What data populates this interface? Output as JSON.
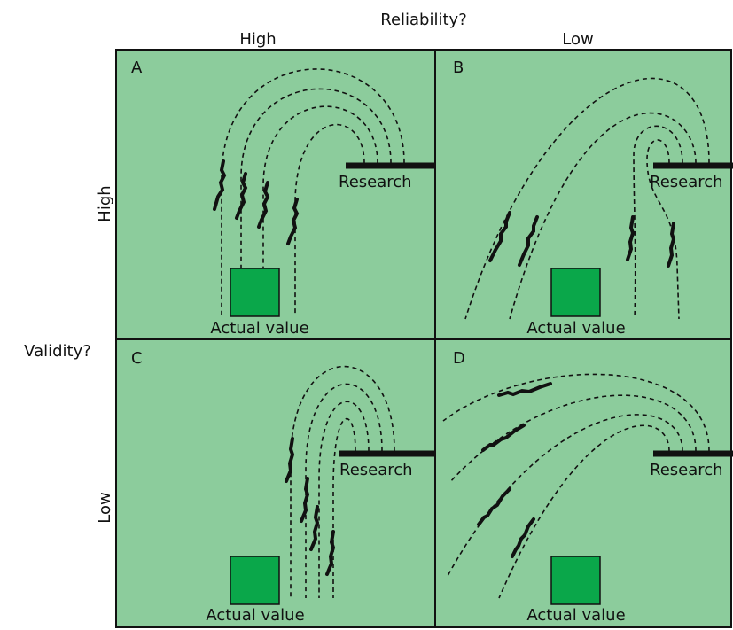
{
  "header": {
    "title": "Reliability?",
    "columns": [
      "High",
      "Low"
    ]
  },
  "side": {
    "title": "Validity?",
    "rows": [
      "High",
      "Low"
    ]
  },
  "panels": [
    {
      "letter": "A",
      "research": "Research",
      "actual": "Actual value"
    },
    {
      "letter": "B",
      "research": "Research",
      "actual": "Actual value"
    },
    {
      "letter": "C",
      "research": "Research",
      "actual": "Actual value"
    },
    {
      "letter": "D",
      "research": "Research",
      "actual": "Actual value"
    }
  ]
}
